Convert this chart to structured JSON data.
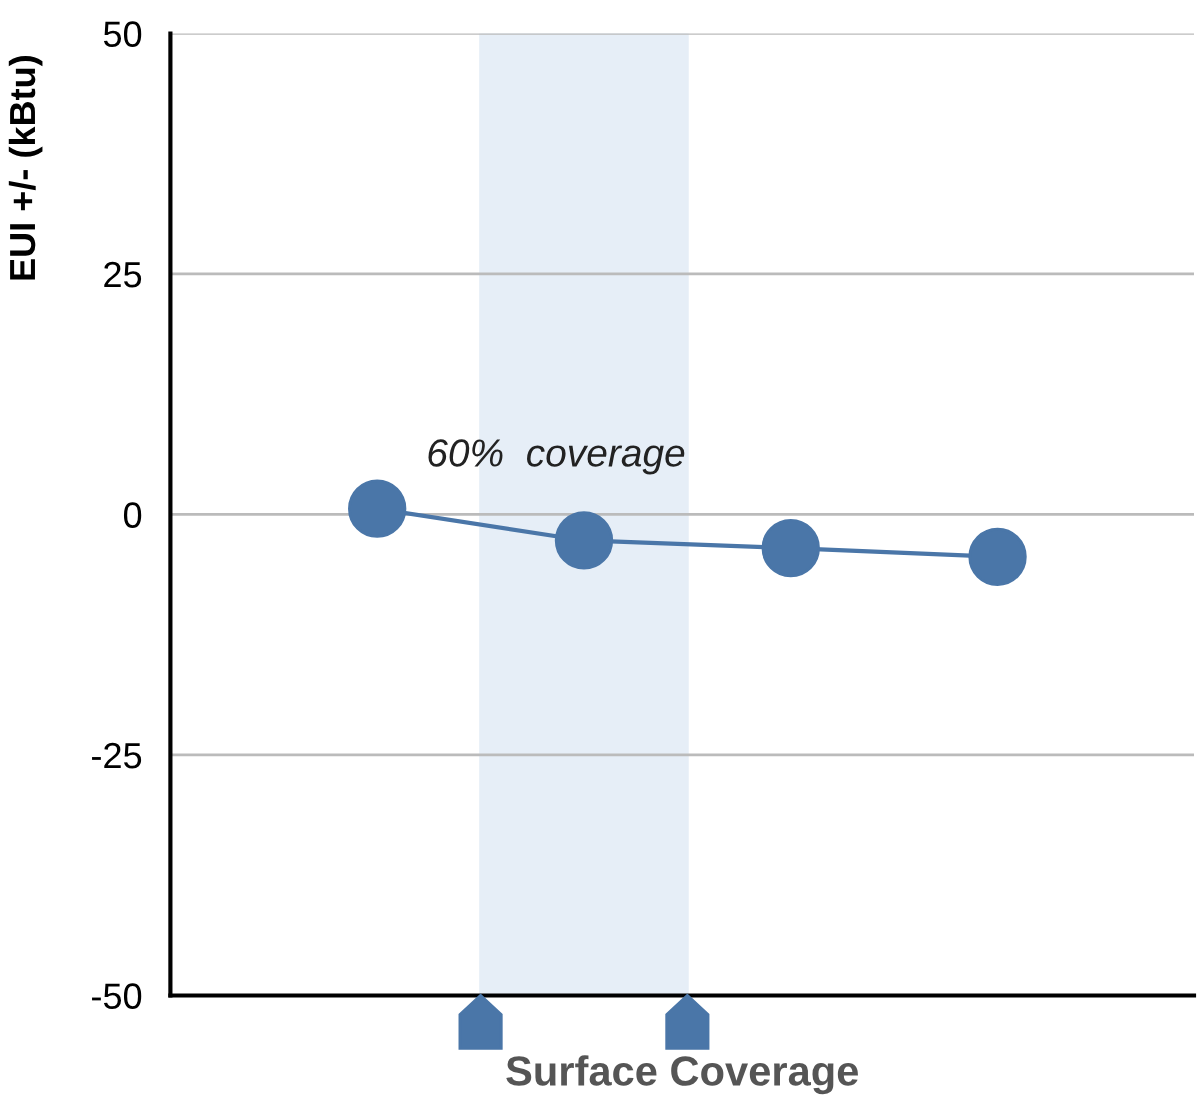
{
  "chart_data": {
    "type": "line",
    "xlabel": "Surface Coverage",
    "ylabel": "EUI +/- (kBtu)",
    "categories": [
      null,
      null,
      null,
      null
    ],
    "series": [
      {
        "color": "#4a76a8",
        "values": [
          0.6,
          -2.7,
          -3.5,
          -4.4
        ]
      }
    ],
    "ylim": [
      -50,
      50
    ],
    "yticks": [
      -50,
      -25,
      0,
      25,
      50
    ],
    "grid": "y",
    "marker": "circle",
    "line_style": "solid",
    "annotations": [
      "60%  coverage"
    ]
  }
}
